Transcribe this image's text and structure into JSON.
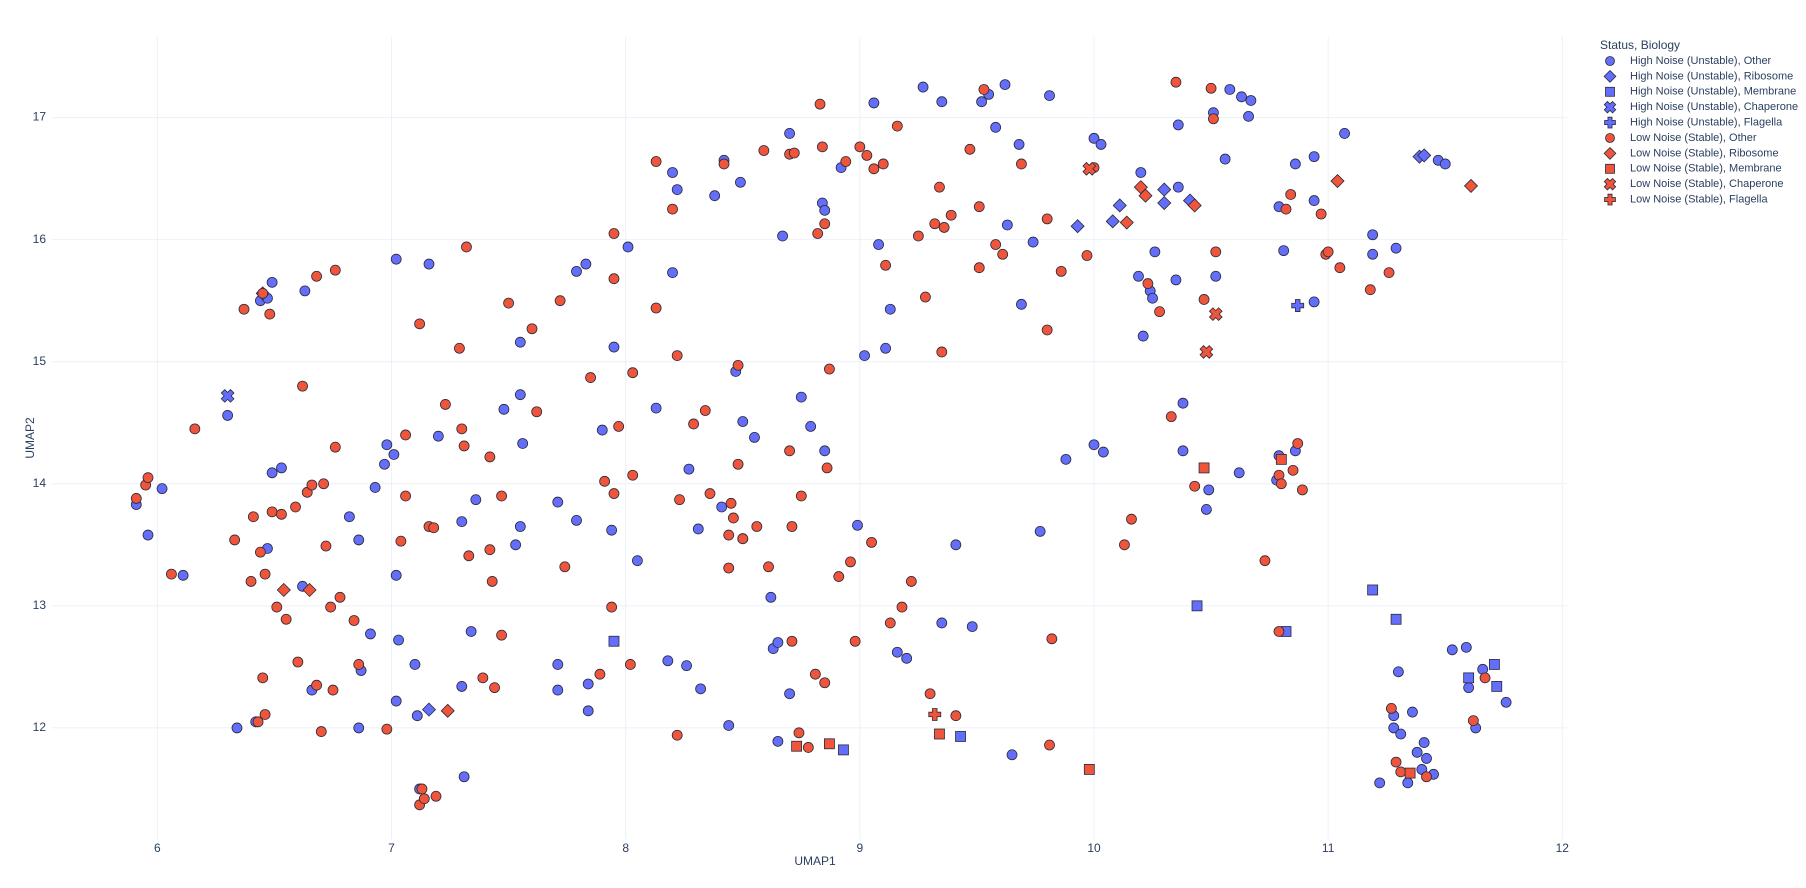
{
  "chart_data": {
    "type": "scatter",
    "x_label": "UMAP1",
    "y_label": "UMAP2",
    "legend_title": "Status, Biology",
    "xlim": [
      5.55,
      12.02
    ],
    "ylim": [
      11.09,
      17.66
    ],
    "xticks": [
      6,
      7,
      8,
      9,
      10,
      11,
      12
    ],
    "yticks": [
      12,
      13,
      14,
      15,
      16,
      17
    ],
    "grid": true,
    "legend_position": "right",
    "series": [
      {
        "name": "High Noise (Unstable), Other",
        "color": "#636efa",
        "symbol": "circle",
        "x": [
          5.91,
          5.96,
          6.02,
          6.11,
          6.3,
          6.34,
          6.42,
          6.44,
          6.47,
          6.49,
          6.47,
          6.49,
          6.53,
          6.62,
          6.63,
          6.66,
          6.82,
          6.86,
          6.87,
          6.86,
          6.91,
          6.93,
          6.97,
          6.98,
          7.01,
          7.02,
          7.02,
          7.03,
          7.02,
          7.1,
          7.11,
          7.12,
          7.16,
          7.2,
          7.31,
          7.3,
          7.3,
          7.34,
          7.36,
          7.48,
          7.53,
          7.55,
          7.56,
          7.55,
          7.55,
          7.71,
          7.71,
          7.71,
          7.79,
          7.79,
          7.83,
          7.84,
          7.84,
          7.9,
          7.94,
          7.95,
          8.01,
          8.05,
          8.13,
          8.18,
          8.2,
          8.2,
          8.22,
          8.26,
          8.27,
          8.31,
          8.32,
          8.38,
          8.41,
          8.42,
          8.44,
          8.47,
          8.5,
          8.49,
          8.5,
          8.55,
          8.62,
          8.63,
          8.65,
          8.65,
          8.67,
          8.7,
          8.7,
          8.75,
          8.79,
          8.84,
          8.85,
          8.85,
          8.92,
          8.99,
          9.02,
          9.06,
          9.08,
          9.11,
          9.13,
          9.16,
          9.2,
          9.27,
          9.35,
          9.35,
          9.41,
          9.48,
          9.52,
          9.55,
          9.58,
          9.62,
          9.63,
          9.65,
          9.68,
          9.69,
          9.74,
          9.77,
          9.81,
          9.88,
          10.0,
          10.0,
          10.03,
          10.04,
          10.19,
          10.2,
          10.21,
          10.24,
          10.25,
          10.26,
          10.35,
          10.36,
          10.36,
          10.38,
          10.38,
          10.48,
          10.49,
          10.51,
          10.52,
          10.56,
          10.58,
          10.62,
          10.63,
          10.66,
          10.67,
          10.78,
          10.79,
          10.79,
          10.81,
          10.86,
          10.86,
          10.94,
          10.94,
          10.94,
          11.07,
          11.19,
          11.19,
          11.29,
          11.22,
          11.28,
          11.28,
          11.3,
          11.31,
          11.34,
          11.36,
          11.38,
          11.4,
          11.41,
          11.42,
          11.45,
          11.47,
          11.5,
          11.53,
          11.59,
          11.6,
          11.63,
          11.66,
          11.76
        ],
        "y": [
          13.83,
          13.58,
          13.96,
          13.25,
          14.56,
          12.0,
          12.05,
          15.5,
          15.52,
          15.65,
          13.47,
          14.09,
          14.13,
          13.16,
          15.58,
          12.31,
          13.73,
          13.54,
          12.47,
          12.0,
          12.77,
          13.97,
          14.16,
          14.32,
          14.24,
          15.84,
          13.25,
          12.72,
          12.22,
          12.52,
          12.1,
          11.5,
          15.8,
          14.39,
          11.6,
          12.34,
          13.69,
          12.79,
          13.87,
          14.61,
          13.5,
          15.16,
          14.33,
          14.73,
          13.65,
          13.85,
          12.52,
          12.31,
          13.7,
          15.74,
          15.8,
          12.36,
          12.14,
          14.44,
          13.62,
          15.12,
          15.94,
          13.37,
          14.62,
          12.55,
          15.73,
          16.55,
          16.41,
          12.51,
          14.12,
          13.63,
          12.32,
          16.36,
          13.81,
          16.65,
          12.02,
          14.92,
          14.51,
          16.47,
          13.55,
          14.38,
          13.07,
          12.65,
          12.7,
          11.89,
          16.03,
          16.87,
          12.28,
          14.71,
          14.47,
          16.3,
          16.24,
          14.27,
          16.59,
          13.66,
          15.05,
          17.12,
          15.96,
          15.11,
          15.43,
          12.62,
          12.57,
          17.25,
          17.13,
          12.86,
          13.5,
          12.83,
          17.13,
          17.19,
          16.92,
          17.27,
          16.12,
          11.78,
          16.78,
          15.47,
          15.98,
          13.61,
          17.18,
          14.2,
          16.83,
          14.32,
          16.78,
          14.26,
          15.7,
          16.55,
          15.21,
          15.58,
          15.52,
          15.9,
          15.67,
          16.94,
          16.43,
          14.66,
          14.27,
          13.79,
          13.95,
          17.04,
          15.7,
          16.66,
          17.23,
          14.09,
          17.17,
          17.01,
          17.14,
          14.03,
          14.23,
          16.27,
          15.91,
          16.62,
          14.27,
          16.68,
          16.32,
          15.49,
          16.87,
          16.04,
          15.88,
          15.93,
          11.55,
          12.0,
          12.1,
          12.46,
          11.95,
          11.55,
          12.13,
          11.8,
          11.66,
          11.88,
          11.75,
          11.62,
          16.65,
          16.62,
          12.64,
          12.66,
          12.33,
          12.0,
          12.48,
          12.21
        ]
      },
      {
        "name": "High Noise (Unstable), Ribosome",
        "color": "#636efa",
        "symbol": "diamond",
        "x": [
          6.45,
          7.16,
          9.93,
          10.08,
          10.11,
          10.3,
          10.3,
          10.41,
          11.39,
          11.41
        ],
        "y": [
          15.56,
          12.15,
          16.11,
          16.15,
          16.28,
          16.41,
          16.3,
          16.32,
          16.68,
          16.69
        ]
      },
      {
        "name": "High Noise (Unstable), Membrane",
        "color": "#636efa",
        "symbol": "square",
        "x": [
          7.95,
          8.93,
          9.43,
          10.44,
          10.82,
          11.19,
          11.29,
          11.6,
          11.71,
          11.72
        ],
        "y": [
          12.71,
          11.82,
          11.93,
          13.0,
          12.79,
          13.13,
          12.89,
          12.41,
          12.52,
          12.34
        ]
      },
      {
        "name": "High Noise (Unstable), Chaperone",
        "color": "#636efa",
        "symbol": "x",
        "x": [
          6.3
        ],
        "y": [
          14.72
        ]
      },
      {
        "name": "High Noise (Unstable), Flagella",
        "color": "#636efa",
        "symbol": "cross",
        "x": [
          10.87
        ],
        "y": [
          15.46
        ]
      },
      {
        "name": "Low Noise (Stable), Other",
        "color": "#EF553B",
        "symbol": "circle",
        "x": [
          5.91,
          5.95,
          5.96,
          6.06,
          6.16,
          6.33,
          6.37,
          6.4,
          6.41,
          6.43,
          6.44,
          6.45,
          6.45,
          6.46,
          6.46,
          6.48,
          6.49,
          6.51,
          6.53,
          6.55,
          6.59,
          6.6,
          6.62,
          6.64,
          6.66,
          6.68,
          6.68,
          6.7,
          6.71,
          6.72,
          6.74,
          6.75,
          6.76,
          6.76,
          6.78,
          6.84,
          6.86,
          6.98,
          7.04,
          7.06,
          7.06,
          7.12,
          7.12,
          7.13,
          7.14,
          7.16,
          7.18,
          7.19,
          7.23,
          7.29,
          7.3,
          7.31,
          7.32,
          7.33,
          7.39,
          7.42,
          7.42,
          7.43,
          7.44,
          7.47,
          7.47,
          7.5,
          7.6,
          7.62,
          7.72,
          7.74,
          7.85,
          7.89,
          7.91,
          7.94,
          7.95,
          7.95,
          7.95,
          7.97,
          8.02,
          8.03,
          8.03,
          8.13,
          8.13,
          8.2,
          8.22,
          8.22,
          8.23,
          8.29,
          8.34,
          8.36,
          8.42,
          8.44,
          8.44,
          8.45,
          8.46,
          8.48,
          8.48,
          8.5,
          8.56,
          8.59,
          8.61,
          8.7,
          8.7,
          8.71,
          8.71,
          8.72,
          8.74,
          8.75,
          8.78,
          8.81,
          8.82,
          8.83,
          8.84,
          8.85,
          8.85,
          8.86,
          8.87,
          8.91,
          8.94,
          8.96,
          8.98,
          9.0,
          9.03,
          9.05,
          9.06,
          9.1,
          9.11,
          9.13,
          9.16,
          9.18,
          9.22,
          9.25,
          9.28,
          9.3,
          9.32,
          9.34,
          9.35,
          9.36,
          9.39,
          9.41,
          9.47,
          9.51,
          9.51,
          9.53,
          9.58,
          9.61,
          9.69,
          9.8,
          9.8,
          9.82,
          9.81,
          9.86,
          9.97,
          10.0,
          10.13,
          10.16,
          10.23,
          10.28,
          10.33,
          10.35,
          10.43,
          10.47,
          10.5,
          10.51,
          10.52,
          10.73,
          10.79,
          10.79,
          10.8,
          10.82,
          10.84,
          10.85,
          10.87,
          10.89,
          10.97,
          10.99,
          11.0,
          11.05,
          11.18,
          11.26,
          11.27,
          11.29,
          11.31,
          11.42,
          11.62,
          11.67
        ],
        "y": [
          13.88,
          13.99,
          14.05,
          13.26,
          14.45,
          13.54,
          15.43,
          13.2,
          13.73,
          12.05,
          13.44,
          12.41,
          15.56,
          12.11,
          13.26,
          15.39,
          13.77,
          12.99,
          13.75,
          12.89,
          13.81,
          12.54,
          14.8,
          13.93,
          13.99,
          15.7,
          12.35,
          11.97,
          14.0,
          13.49,
          12.99,
          12.31,
          14.3,
          15.75,
          13.07,
          12.88,
          12.52,
          11.99,
          13.53,
          13.9,
          14.4,
          15.31,
          11.37,
          11.5,
          11.42,
          13.65,
          13.64,
          11.44,
          14.65,
          15.11,
          14.45,
          14.31,
          15.94,
          13.41,
          12.41,
          14.22,
          13.46,
          13.2,
          12.33,
          13.9,
          12.76,
          15.48,
          15.27,
          14.59,
          15.5,
          13.32,
          14.87,
          12.44,
          14.02,
          12.99,
          13.92,
          15.68,
          16.05,
          14.47,
          12.52,
          14.07,
          14.91,
          15.44,
          16.64,
          16.25,
          15.05,
          11.94,
          13.87,
          14.49,
          14.6,
          13.92,
          16.62,
          13.31,
          13.58,
          13.84,
          13.72,
          14.16,
          14.97,
          13.55,
          13.65,
          16.73,
          13.32,
          16.7,
          14.27,
          13.65,
          12.71,
          16.71,
          11.96,
          13.9,
          11.84,
          12.44,
          16.05,
          17.11,
          16.76,
          12.37,
          16.13,
          14.13,
          14.94,
          13.24,
          16.64,
          13.36,
          12.71,
          16.76,
          16.69,
          13.52,
          16.58,
          16.62,
          15.79,
          12.86,
          16.93,
          12.99,
          13.2,
          16.03,
          15.53,
          12.28,
          16.13,
          16.43,
          15.08,
          16.1,
          16.2,
          12.1,
          16.74,
          16.27,
          15.77,
          17.23,
          15.96,
          15.88,
          16.62,
          16.17,
          15.26,
          12.73,
          11.86,
          15.74,
          15.87,
          16.59,
          13.5,
          13.71,
          15.64,
          15.41,
          14.55,
          17.29,
          13.98,
          15.51,
          17.24,
          16.99,
          15.9,
          13.37,
          12.79,
          14.07,
          14.0,
          16.25,
          16.37,
          14.11,
          14.33,
          13.95,
          16.21,
          15.88,
          15.9,
          15.77,
          15.59,
          15.73,
          12.16,
          11.72,
          11.64,
          11.6,
          12.06,
          12.41
        ]
      },
      {
        "name": "Low Noise (Stable), Ribosome",
        "color": "#EF553B",
        "symbol": "diamond",
        "x": [
          6.54,
          6.65,
          7.24,
          10.2,
          10.22,
          10.14,
          10.43,
          11.04,
          11.61
        ],
        "y": [
          13.13,
          13.13,
          12.14,
          16.43,
          16.36,
          16.14,
          16.28,
          16.48,
          16.44
        ]
      },
      {
        "name": "Low Noise (Stable), Membrane",
        "color": "#EF553B",
        "symbol": "square",
        "x": [
          8.73,
          8.87,
          9.34,
          9.98,
          10.47,
          10.8,
          11.35
        ],
        "y": [
          11.85,
          11.87,
          11.95,
          11.66,
          14.13,
          14.2,
          11.63
        ]
      },
      {
        "name": "Low Noise (Stable), Chaperone",
        "color": "#EF553B",
        "symbol": "x",
        "x": [
          9.98,
          10.52,
          10.48
        ],
        "y": [
          16.58,
          15.39,
          15.08
        ]
      },
      {
        "name": "Low Noise (Stable), Flagella",
        "color": "#EF553B",
        "symbol": "cross",
        "x": [
          9.32
        ],
        "y": [
          12.11
        ]
      }
    ]
  }
}
